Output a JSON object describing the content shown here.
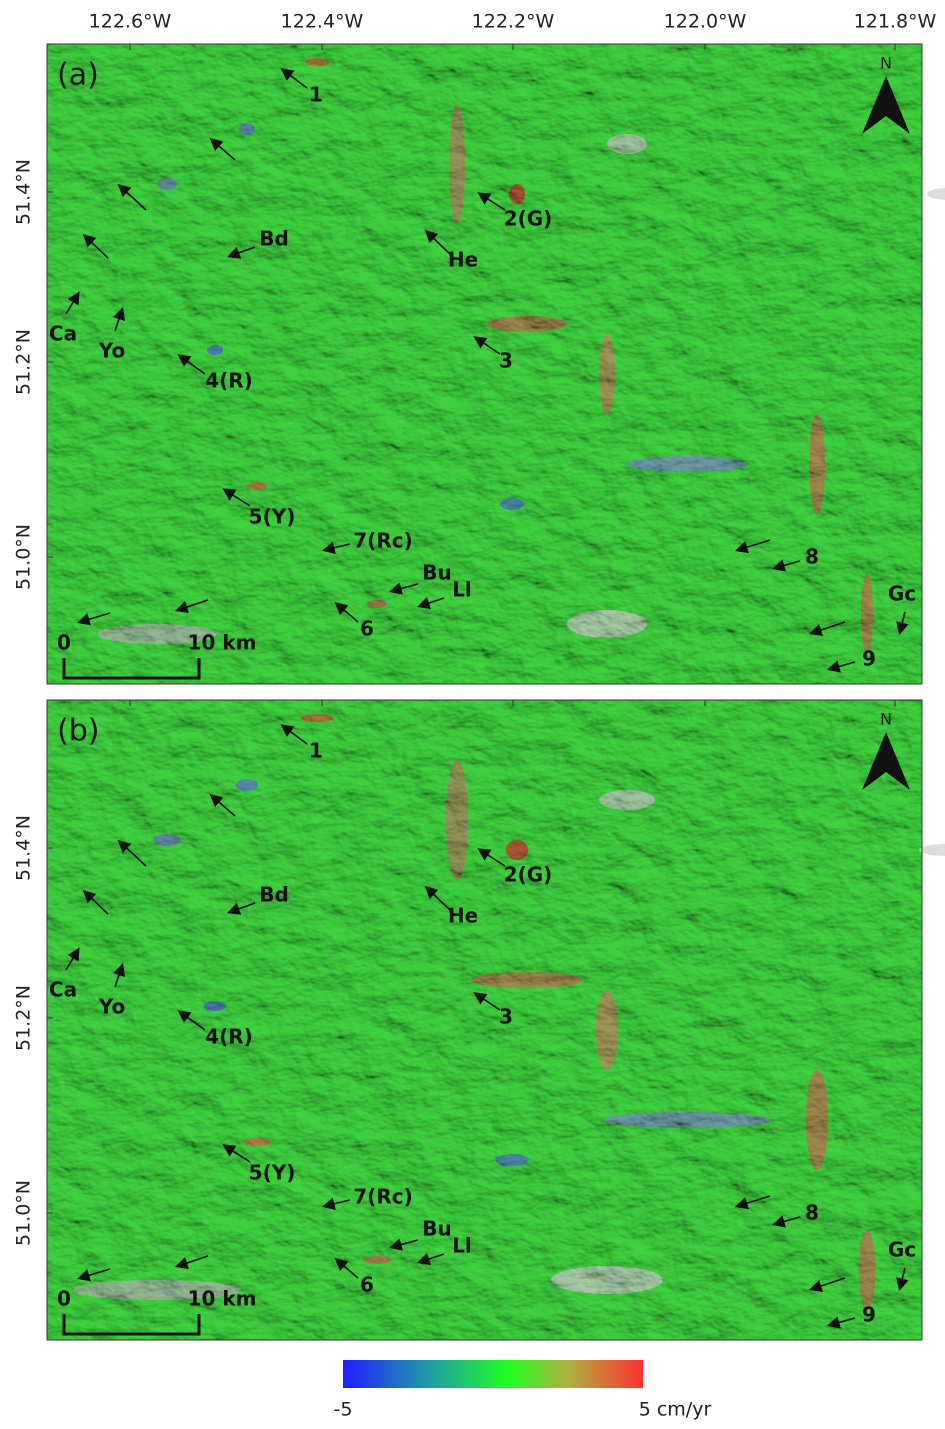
{
  "header": {
    "longitude_labels": [
      "122.6°W",
      "122.4°W",
      "122.2°W",
      "122.0°W",
      "121.8°W"
    ]
  },
  "panels": [
    {
      "label": "(a)",
      "latitude_labels": [
        "51.4°N",
        "51.2°N",
        "51.0°N"
      ],
      "north": "N",
      "scale": {
        "start": "0",
        "end": "10 km"
      },
      "annotations": [
        "1",
        "2(G)",
        "3",
        "4(R)",
        "5(Y)",
        "6",
        "7(Rc)",
        "8",
        "9",
        "Bd",
        "He",
        "Ca",
        "Yo",
        "Bu",
        "Ll",
        "Gc"
      ]
    },
    {
      "label": "(b)",
      "latitude_labels": [
        "51.4°N",
        "51.2°N",
        "51.0°N"
      ],
      "north": "N",
      "scale": {
        "start": "0",
        "end": "10 km"
      },
      "annotations": [
        "1",
        "2(G)",
        "3",
        "4(R)",
        "5(Y)",
        "6",
        "7(Rc)",
        "8",
        "9",
        "Bd",
        "He",
        "Ca",
        "Yo",
        "Bu",
        "Ll",
        "Gc"
      ]
    }
  ],
  "colorbar": {
    "min": "-5",
    "max": "5 cm/yr"
  }
}
